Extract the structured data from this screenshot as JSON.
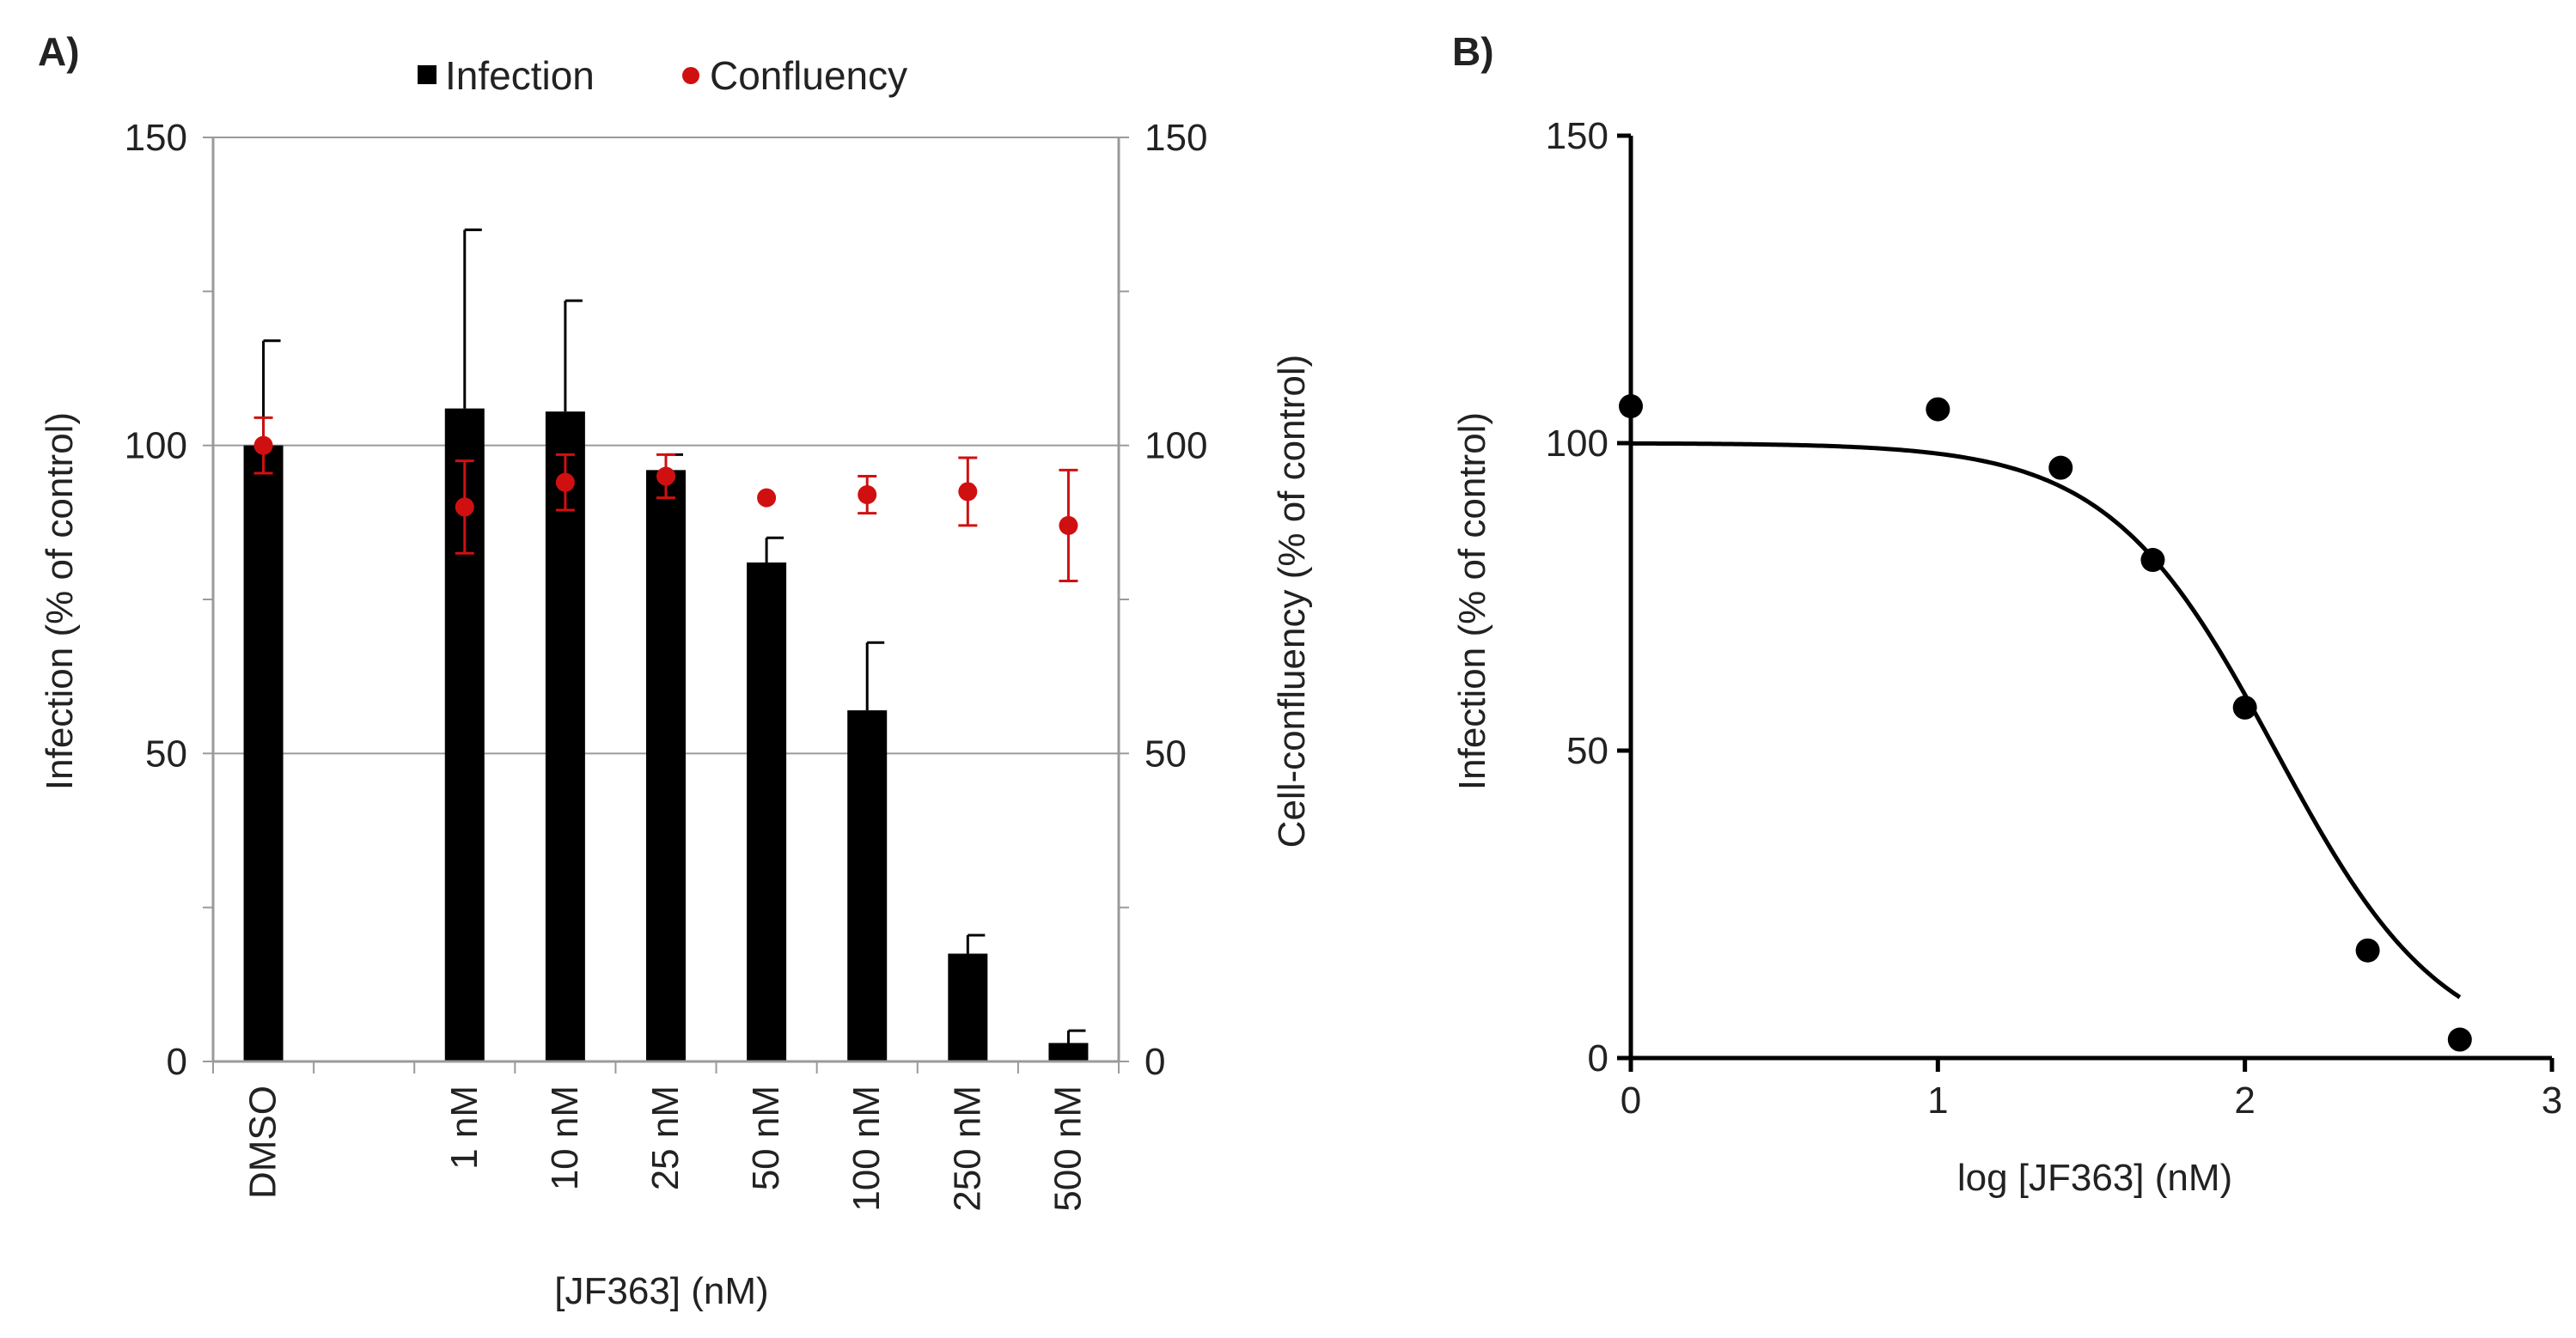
{
  "chart_data": [
    {
      "panel": "A)",
      "type": "bar",
      "categories": [
        "DMSO",
        "",
        "1 nM",
        "10 nM",
        "25 nM",
        "50 nM",
        "100 nM",
        "250 nM",
        "500 nM"
      ],
      "series": [
        {
          "name": "Infection",
          "kind": "bar",
          "axis": "left",
          "color": "#000000",
          "values": [
            100,
            null,
            106,
            105.5,
            96,
            81,
            57,
            17.5,
            3
          ],
          "error_upper": [
            17,
            null,
            29,
            18,
            2.5,
            4,
            11,
            3,
            2
          ]
        },
        {
          "name": "Confluency",
          "kind": "point",
          "axis": "right",
          "color": "#d01010",
          "values": [
            100,
            null,
            90,
            94,
            95,
            91.5,
            92,
            92.5,
            87
          ],
          "error": [
            4.5,
            null,
            7.5,
            4.5,
            3.5,
            0,
            3,
            5.5,
            9
          ]
        }
      ],
      "xlabel": "[JF363] (nM)",
      "ylabel": "Infection (% of control)",
      "ylabel_right": "Cell-confluency (% of control)",
      "ylim": [
        0,
        150
      ],
      "yticks": [
        "0",
        "50",
        "100",
        "150"
      ],
      "grid_y": [
        50,
        100,
        150
      ],
      "legend": "top"
    },
    {
      "panel": "B)",
      "type": "scatter",
      "x": [
        0,
        1,
        1.4,
        1.7,
        2.0,
        2.4,
        2.7
      ],
      "y": [
        106,
        105.5,
        96,
        81,
        57,
        17.5,
        3
      ],
      "fit": {
        "model": "sigmoid",
        "top": 100,
        "bottom": 0,
        "log_ic50": 2.1,
        "hill_slope": 1.6
      },
      "color": "#000000",
      "xlabel": "log [JF363] (nM)",
      "ylabel": "Infection (% of control)",
      "xlim": [
        0,
        3
      ],
      "ylim": [
        0,
        150
      ],
      "xticks": [
        "0",
        "1",
        "2",
        "3"
      ],
      "yticks": [
        "0",
        "50",
        "100",
        "150"
      ]
    }
  ]
}
